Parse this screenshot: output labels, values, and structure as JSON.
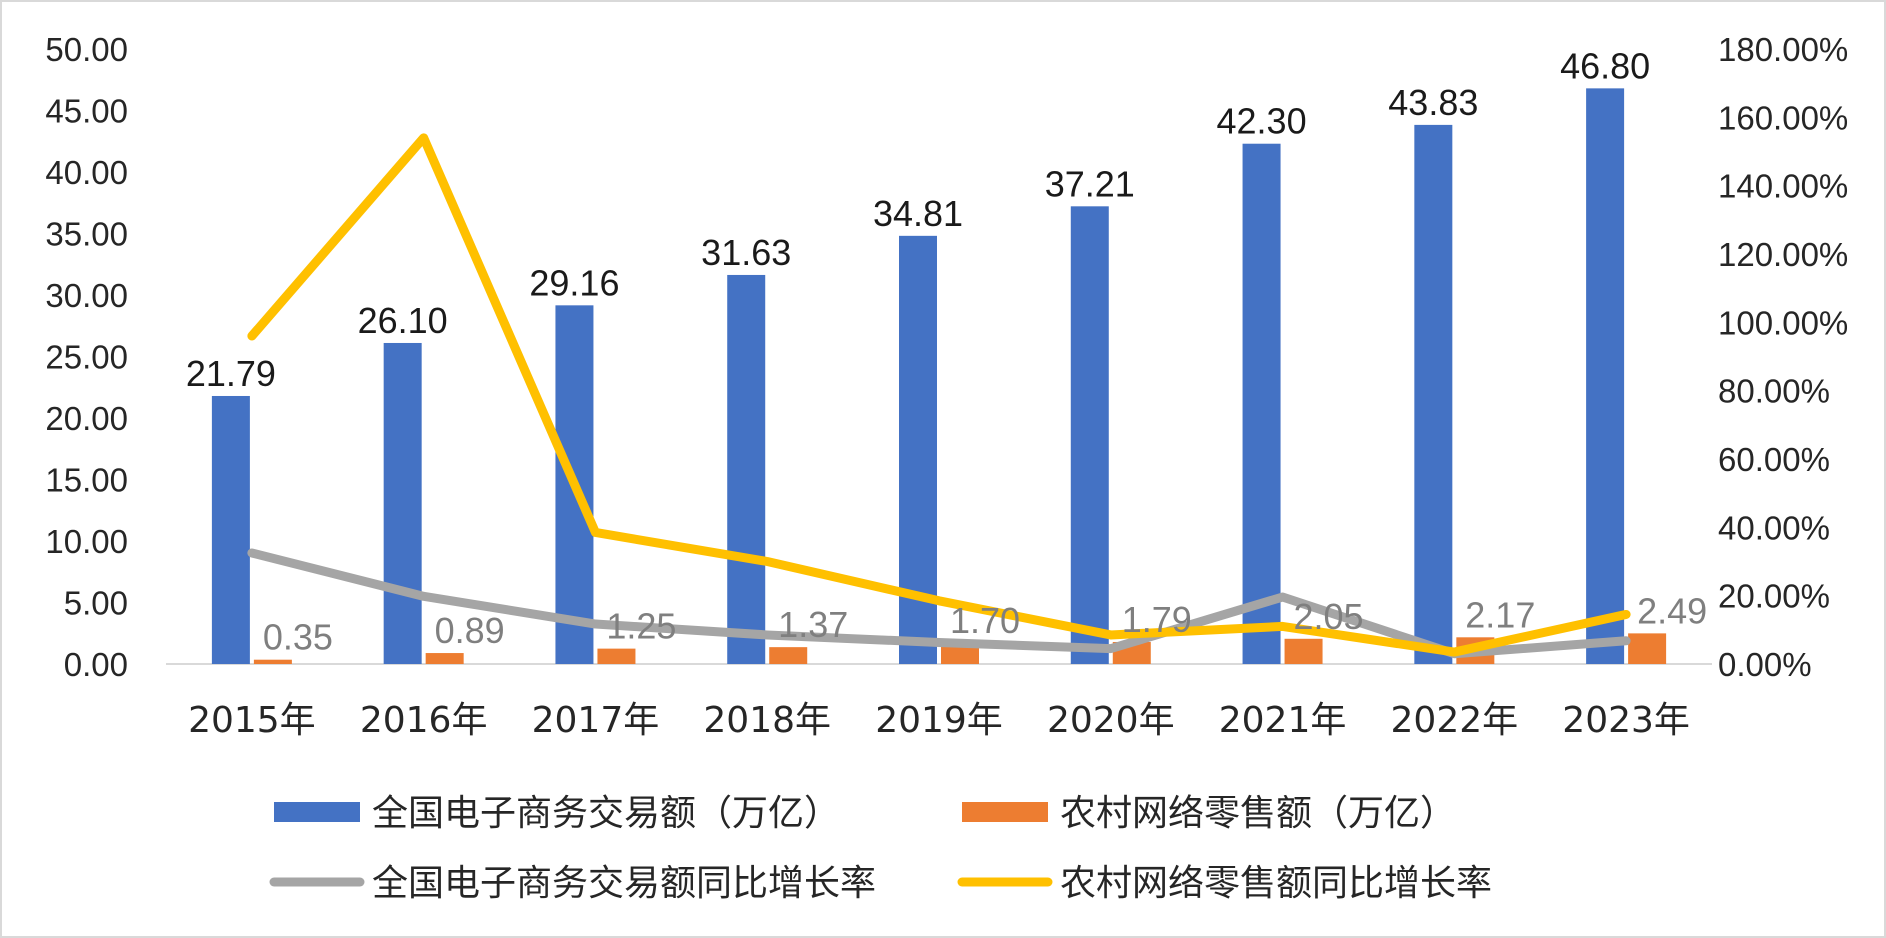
{
  "chart_data": {
    "type": "bar",
    "categories": [
      "2015年",
      "2016年",
      "2017年",
      "2018年",
      "2019年",
      "2020年",
      "2021年",
      "2022年",
      "2023年"
    ],
    "primary_axis": {
      "ylim": [
        0,
        50
      ],
      "ticks": [
        "0.00",
        "5.00",
        "10.00",
        "15.00",
        "20.00",
        "25.00",
        "30.00",
        "35.00",
        "40.00",
        "45.00",
        "50.00"
      ]
    },
    "secondary_axis": {
      "ylim": [
        0,
        180
      ],
      "ticks": [
        "0.00%",
        "20.00%",
        "40.00%",
        "60.00%",
        "80.00%",
        "100.00%",
        "120.00%",
        "140.00%",
        "160.00%",
        "180.00%"
      ]
    },
    "series": [
      {
        "name": "全国电子商务交易额（万亿）",
        "type": "bar",
        "axis": "primary",
        "color": "#4472c4",
        "values": [
          21.79,
          26.1,
          29.16,
          31.63,
          34.81,
          37.21,
          42.3,
          43.83,
          46.8
        ],
        "labels": [
          "21.79",
          "26.10",
          "29.16",
          "31.63",
          "34.81",
          "37.21",
          "42.30",
          "43.83",
          "46.80"
        ],
        "label_color": "#1a1a1a"
      },
      {
        "name": "农村网络零售额（万亿）",
        "type": "bar",
        "axis": "primary",
        "color": "#ed7d31",
        "values": [
          0.35,
          0.89,
          1.25,
          1.37,
          1.7,
          1.79,
          2.05,
          2.17,
          2.49
        ],
        "labels": [
          "0.35",
          "0.89",
          "1.25",
          "1.37",
          "1.70",
          "1.79",
          "2.05",
          "2.17",
          "2.49"
        ],
        "label_color": "#7f7f7f"
      },
      {
        "name": "全国电子商务交易额同比增长率",
        "type": "line",
        "axis": "secondary",
        "color": "#a5a5a5",
        "values": [
          32.5,
          19.8,
          11.7,
          8.5,
          6.3,
          4.5,
          19.6,
          3.0,
          6.8
        ]
      },
      {
        "name": "农村网络零售额同比增长率",
        "type": "line",
        "axis": "secondary",
        "color": "#ffc000",
        "values": [
          96,
          154,
          38.5,
          30,
          18.5,
          8.5,
          11,
          3.5,
          14.5
        ]
      }
    ],
    "legend_position": "bottom",
    "grid": false
  }
}
